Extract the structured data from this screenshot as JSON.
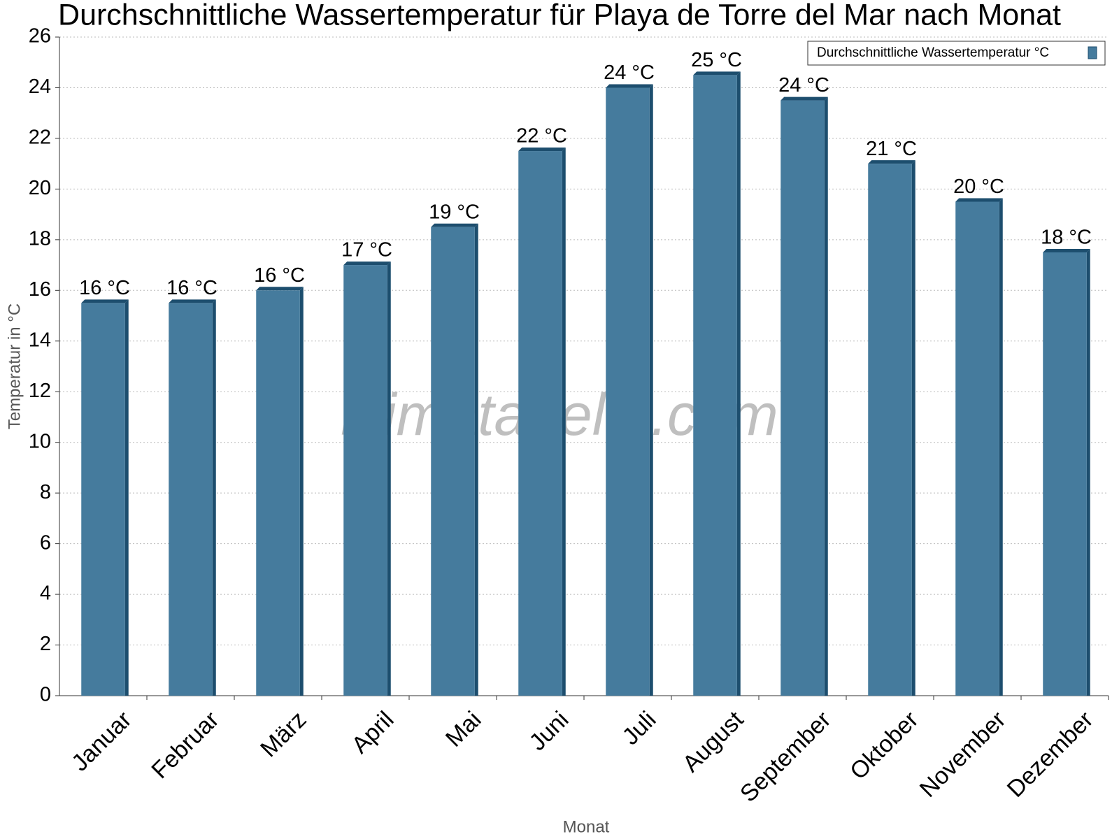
{
  "chart_data": {
    "type": "bar",
    "title": "Durchschnittliche Wassertemperatur für Playa de Torre del Mar nach Monat",
    "x_label": "Monat",
    "y_label": "Temperatur in °C",
    "watermark": "klimatabelle.com",
    "categories": [
      "Januar",
      "Februar",
      "März",
      "April",
      "Mai",
      "Juni",
      "Juli",
      "August",
      "September",
      "Oktober",
      "November",
      "Dezember"
    ],
    "series": [
      {
        "name": "Durchschnittliche Wassertemperatur °C",
        "color": "#457b9d",
        "values": [
          15.5,
          15.5,
          16,
          17,
          18.5,
          21.5,
          24,
          24.5,
          23.5,
          21,
          19.5,
          17.5
        ],
        "value_labels": [
          "16 °C",
          "16 °C",
          "16 °C",
          "17 °C",
          "19 °C",
          "22 °C",
          "24 °C",
          "25 °C",
          "24 °C",
          "21 °C",
          "20 °C",
          "18 °C"
        ]
      }
    ],
    "ylim": [
      0,
      26
    ],
    "yticks": [
      0,
      2,
      4,
      6,
      8,
      10,
      12,
      14,
      16,
      18,
      20,
      22,
      24,
      26
    ],
    "grid": true,
    "legend": "top-right"
  }
}
